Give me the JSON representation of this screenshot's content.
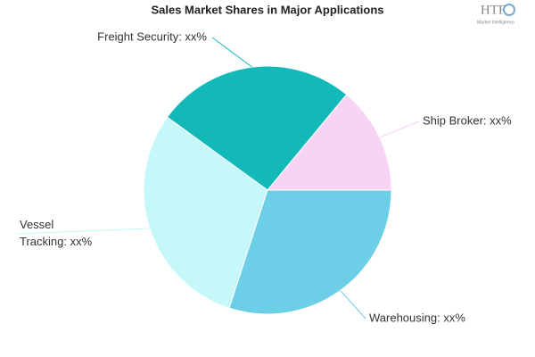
{
  "chart_data": {
    "type": "pie",
    "title": "Sales Market Shares in Major Applications",
    "labels": [
      "Ship Broker: xx%",
      "Freight Security: xx%",
      "Vessel Tracking: xx%",
      "Warehousing: xx%"
    ],
    "values": [
      14,
      26,
      30,
      30
    ],
    "colors": [
      "#f9d3f6",
      "#13b9b9",
      "#c6f7f9",
      "#6ccfe7"
    ]
  },
  "logo": {
    "text": "HTF",
    "subtext": "Market Intelligence"
  }
}
